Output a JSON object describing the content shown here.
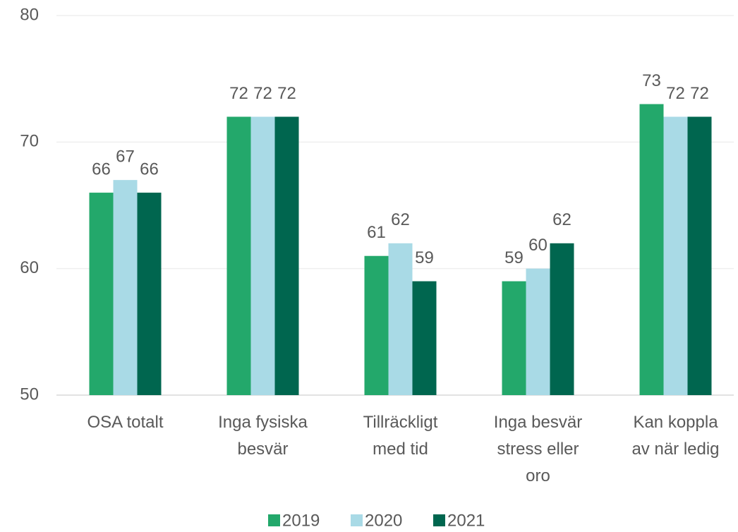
{
  "chart_data": {
    "type": "bar",
    "categories": [
      "OSA totalt",
      "Inga fysiska besvär",
      "Tillräckligt med tid",
      "Inga besvär stress eller oro",
      "Kan koppla av när ledig"
    ],
    "series": [
      {
        "name": "2019",
        "color": "#23a86b",
        "values": [
          66,
          72,
          61,
          59,
          73
        ]
      },
      {
        "name": "2020",
        "color": "#a9dae6",
        "values": [
          67,
          72,
          62,
          60,
          72
        ]
      },
      {
        "name": "2021",
        "color": "#00664f",
        "values": [
          66,
          72,
          59,
          62,
          72
        ]
      }
    ],
    "ylim": [
      50,
      80
    ],
    "yticks": [
      50,
      60,
      70,
      80
    ],
    "grid": true,
    "legend": "bottom"
  }
}
